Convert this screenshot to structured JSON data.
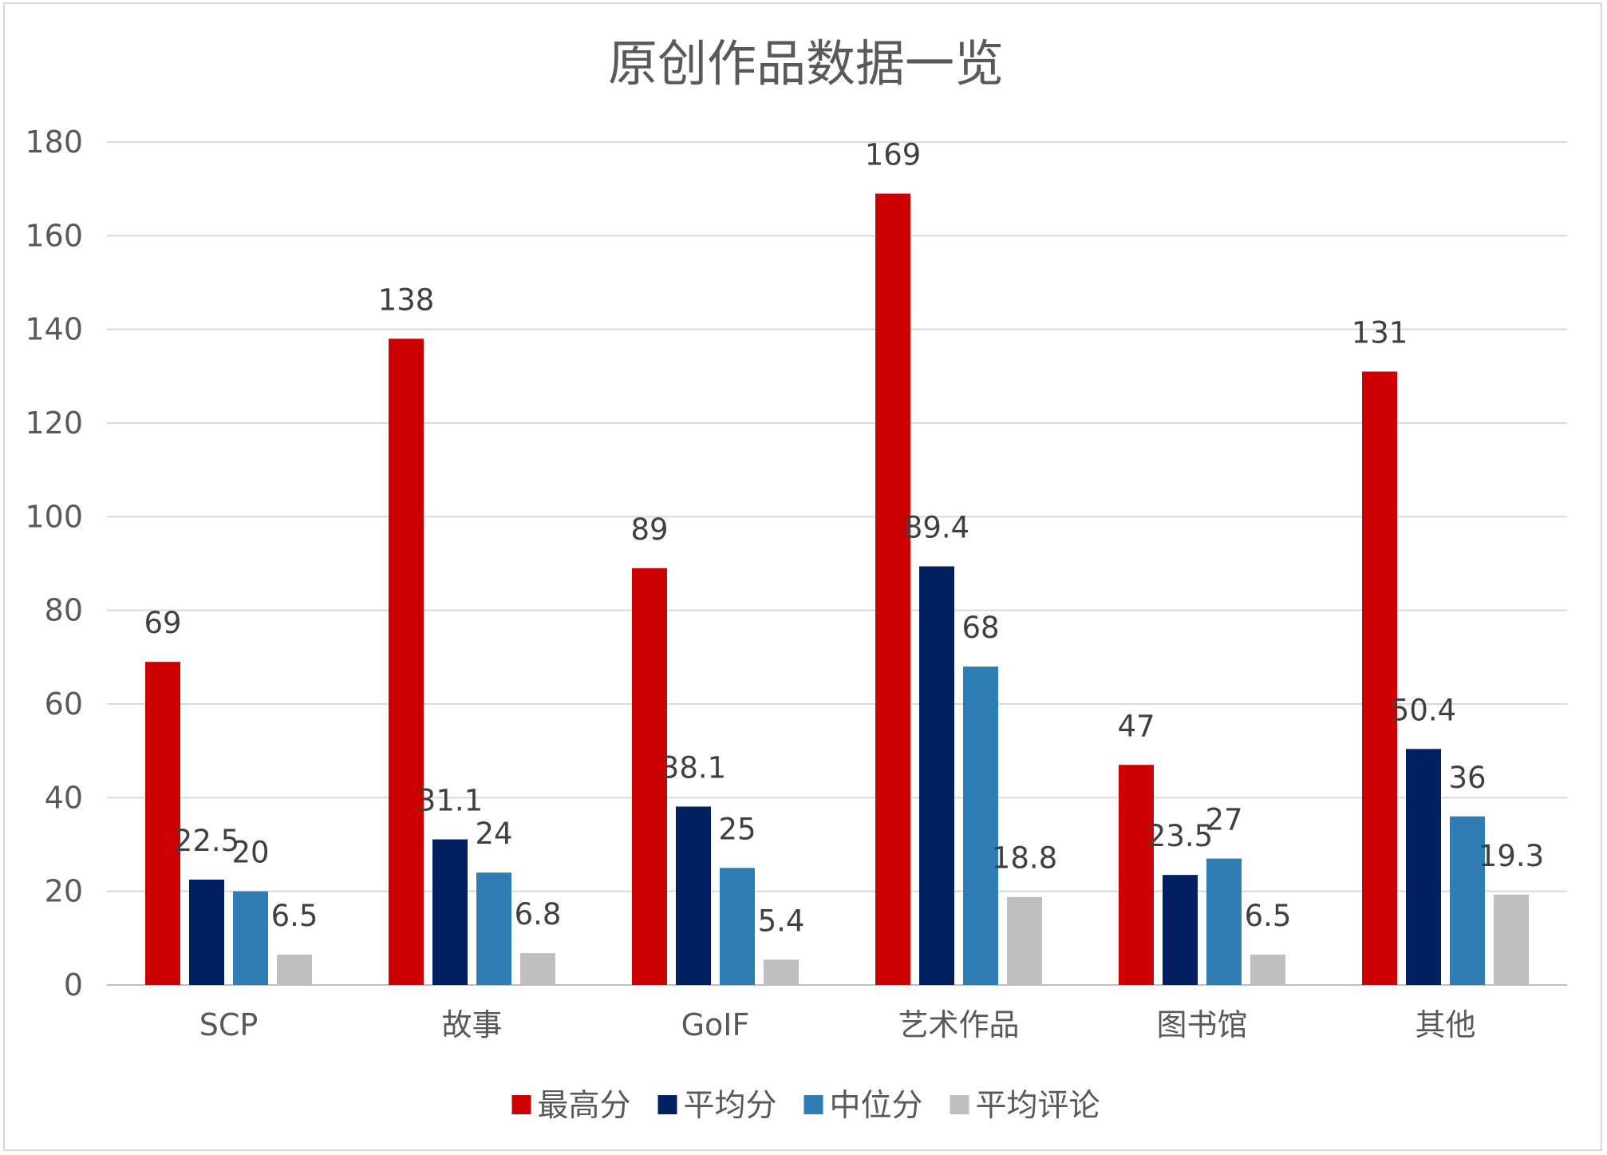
{
  "chart_data": {
    "type": "bar",
    "title": "原创作品数据一览",
    "xlabel": "",
    "ylabel": "",
    "ylim": [
      0,
      180
    ],
    "ytick_step": 20,
    "yticks": [
      "0",
      "20",
      "40",
      "60",
      "80",
      "100",
      "120",
      "140",
      "160",
      "180"
    ],
    "grid": true,
    "legend_position": "bottom",
    "categories": [
      "SCP",
      "故事",
      "GoIF",
      "艺术作品",
      "图书馆",
      "其他"
    ],
    "series": [
      {
        "name": "最高分",
        "color": "#cc0000",
        "values": [
          69,
          138,
          89,
          169,
          47,
          131
        ]
      },
      {
        "name": "平均分",
        "color": "#002060",
        "values": [
          22.5,
          31.1,
          38.1,
          89.4,
          23.5,
          50.4
        ]
      },
      {
        "name": "中位分",
        "color": "#2e7eb5",
        "values": [
          20,
          24,
          25,
          68,
          27,
          36
        ]
      },
      {
        "name": "平均评论",
        "color": "#bfbfbf",
        "values": [
          6.5,
          6.8,
          5.4,
          18.8,
          6.5,
          19.3
        ]
      }
    ]
  }
}
